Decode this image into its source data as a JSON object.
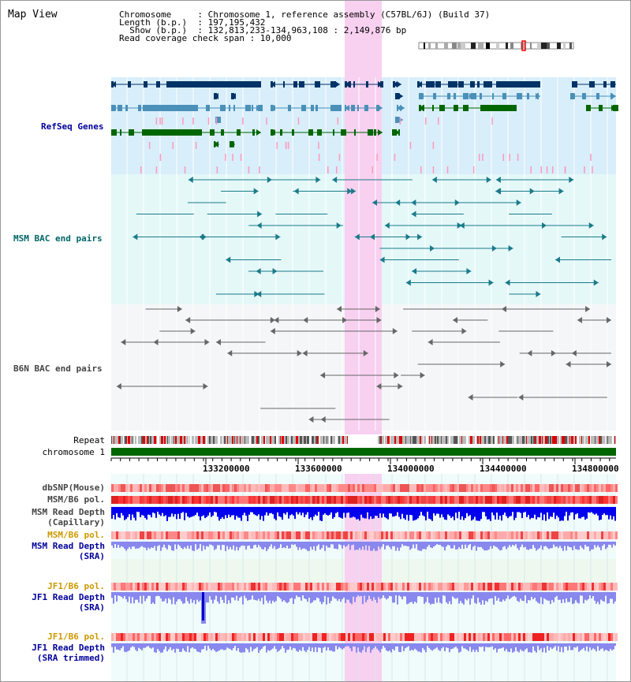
{
  "header": {
    "title": "Map View",
    "info_lines": [
      "Chromosome     : Chromosome 1, reference assembly (C57BL/6J) (Build 37)",
      "Length (b.p.)  : 197,195,432",
      "  Show (b.p.)  : 132,813,233-134,963,108 : 2,149,876 bp",
      "Read coverage check span : 10,000"
    ]
  },
  "tracks": {
    "refseq": {
      "label": "RefSeq Genes",
      "color": "#000099"
    },
    "msm_bac": {
      "label": "MSM BAC end pairs",
      "color": "#006666"
    },
    "b6n_bac": {
      "label": "B6N BAC end pairs",
      "color": "#444444"
    },
    "repeat": {
      "label": "Repeat"
    },
    "chromosome": {
      "label": "chromosome 1"
    },
    "dbsnp": {
      "label": "dbSNP(Mouse)"
    },
    "msm_b6_pol_1": {
      "label": "MSM/B6 pol."
    },
    "msm_depth_cap": {
      "label1": "MSM Read Depth",
      "label2": "(Capillary)"
    },
    "msm_b6_pol_2": {
      "label": "MSM/B6 pol.",
      "color": "#cc9900"
    },
    "msm_depth_sra": {
      "label1": "MSM Read Depth",
      "label2": "(SRA)",
      "color": "#000099"
    },
    "jf1_b6_pol_1": {
      "label": "JF1/B6 pol.",
      "color": "#cc9900"
    },
    "jf1_depth_sra": {
      "label1": "JF1 Read Depth",
      "label2": "(SRA)",
      "color": "#000099"
    },
    "jf1_b6_pol_2": {
      "label": "JF1/B6 pol.",
      "color": "#cc9900"
    },
    "jf1_depth_trim": {
      "label1": "JF1 Read Depth",
      "label2": "(SRA trimmed)",
      "color": "#000099"
    }
  },
  "axis": {
    "ticks": [
      "133200000",
      "133600000",
      "134000000",
      "134400000",
      "134800000"
    ]
  },
  "colors": {
    "highlight": "#f8d0f0",
    "refseq_bg": "#d8eefa",
    "msm_bg": "#e4f8f8",
    "b6n_bg": "#f4f6f8",
    "sra_bg": "#eef8ee",
    "gene_navy": "#003366",
    "gene_blue": "#4a90b8",
    "gene_green": "#006600",
    "depth_blue": "#0000ee",
    "depth_light": "#8888ee"
  }
}
